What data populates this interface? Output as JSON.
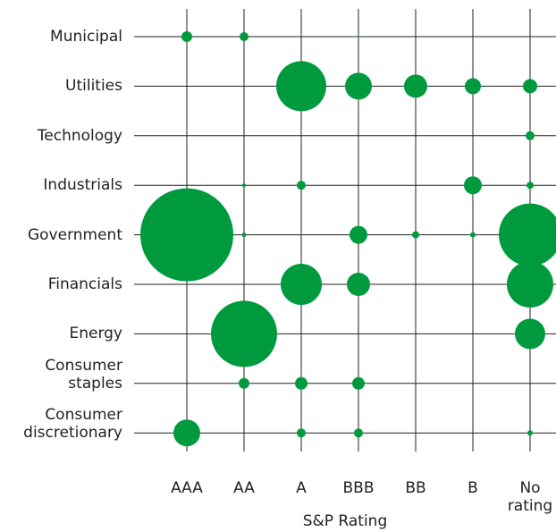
{
  "chart_data": {
    "type": "bubble-grid",
    "x_label": "S&P Rating",
    "x_categories": [
      "AAA",
      "AA",
      "A",
      "BBB",
      "BB",
      "B",
      "No rating"
    ],
    "y_categories": [
      "Municipal",
      "Utilities",
      "Technology",
      "Industrials",
      "Government",
      "Financials",
      "Energy",
      "Consumer staples",
      "Consumer discretionary"
    ],
    "values": [
      [
        36,
        25,
        null,
        1,
        null,
        null,
        null
      ],
      [
        null,
        null,
        784,
        225,
        169,
        81,
        64
      ],
      [
        null,
        null,
        null,
        null,
        null,
        null,
        25
      ],
      [
        null,
        4,
        25,
        null,
        null,
        100,
        16
      ],
      [
        2704,
        6,
        null,
        100,
        16,
        9,
        1225
      ],
      [
        null,
        null,
        529,
        169,
        null,
        null,
        676
      ],
      [
        null,
        1369,
        null,
        null,
        null,
        null,
        289
      ],
      [
        null,
        36,
        49,
        49,
        null,
        null,
        null
      ],
      [
        225,
        null,
        25,
        25,
        null,
        null,
        9
      ]
    ],
    "color": "#009a3e"
  }
}
